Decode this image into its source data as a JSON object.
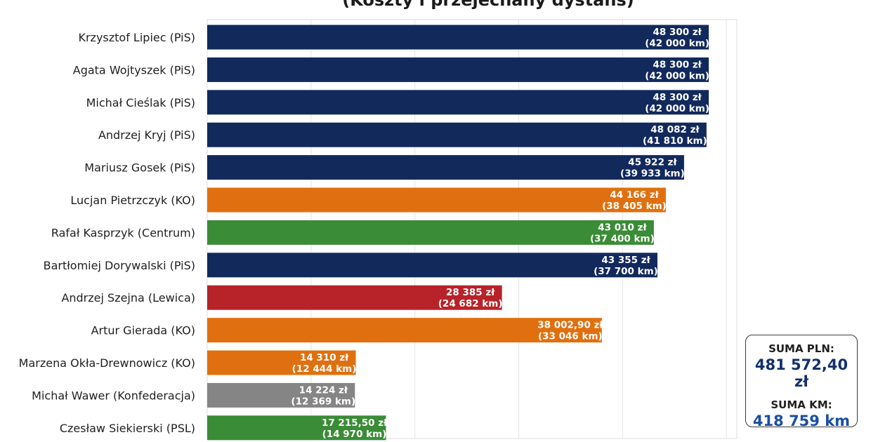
{
  "chart_data": {
    "type": "bar",
    "orientation": "horizontal",
    "title": "(Koszty i przejechany dystans)",
    "xlim": [
      0,
      51000
    ],
    "grid": true,
    "colors": {
      "PiS": "#12295c",
      "KO": "#e0700f",
      "Centrum": "#3a8c36",
      "Lewica": "#b82229",
      "Konfederacja": "#858585",
      "PSL": "#3a8c36"
    },
    "bars": [
      {
        "category": "Krzysztof Lipiec (PiS)",
        "party": "PiS",
        "value": 48300,
        "km": 42000,
        "label_value": "48 300 zł",
        "label_km": "(42 000 km)"
      },
      {
        "category": "Agata Wojtyszek (PiS)",
        "party": "PiS",
        "value": 48300,
        "km": 42000,
        "label_value": "48 300 zł",
        "label_km": "(42 000 km)"
      },
      {
        "category": "Michał Cieślak (PiS)",
        "party": "PiS",
        "value": 48300,
        "km": 42000,
        "label_value": "48 300 zł",
        "label_km": "(42 000 km)"
      },
      {
        "category": "Andrzej Kryj (PiS)",
        "party": "PiS",
        "value": 48082,
        "km": 41810,
        "label_value": "48 082 zł",
        "label_km": "(41 810 km)"
      },
      {
        "category": "Mariusz Gosek (PiS)",
        "party": "PiS",
        "value": 45922,
        "km": 39933,
        "label_value": "45 922 zł",
        "label_km": "(39 933 km)"
      },
      {
        "category": "Lucjan Pietrzczyk (KO)",
        "party": "KO",
        "value": 44166,
        "km": 38405,
        "label_value": "44 166 zł",
        "label_km": "(38 405 km)"
      },
      {
        "category": "Rafał Kasprzyk (Centrum)",
        "party": "Centrum",
        "value": 43010,
        "km": 37400,
        "label_value": "43 010 zł",
        "label_km": "(37 400 km)"
      },
      {
        "category": "Bartłomiej Dorywalski (PiS)",
        "party": "PiS",
        "value": 43355,
        "km": 37700,
        "label_value": "43 355 zł",
        "label_km": "(37 700 km)"
      },
      {
        "category": "Andrzej Szejna (Lewica)",
        "party": "Lewica",
        "value": 28385,
        "km": 24682,
        "label_value": "28 385 zł",
        "label_km": "(24 682 km)"
      },
      {
        "category": "Artur Gierada (KO)",
        "party": "KO",
        "value": 38002.9,
        "km": 33046,
        "label_value": "38 002,90 zł",
        "label_km": "(33 046 km)"
      },
      {
        "category": "Marzena Okła-Drewnowicz (KO)",
        "party": "KO",
        "value": 14310,
        "km": 12444,
        "label_value": "14 310 zł",
        "label_km": "(12 444 km)"
      },
      {
        "category": "Michał Wawer (Konfederacja)",
        "party": "Konfederacja",
        "value": 14224,
        "km": 12369,
        "label_value": "14 224 zł",
        "label_km": "(12 369 km)"
      },
      {
        "category": "Czesław Siekierski (PSL)",
        "party": "PSL",
        "value": 17215.5,
        "km": 14970,
        "label_value": "17 215,50 zł",
        "label_km": "(14 970 km)"
      }
    ]
  },
  "summary": {
    "pln_label": "SUMA PLN:",
    "pln_value": "481 572,40 zł",
    "km_label": "SUMA KM:",
    "km_value": "418 759 km"
  }
}
